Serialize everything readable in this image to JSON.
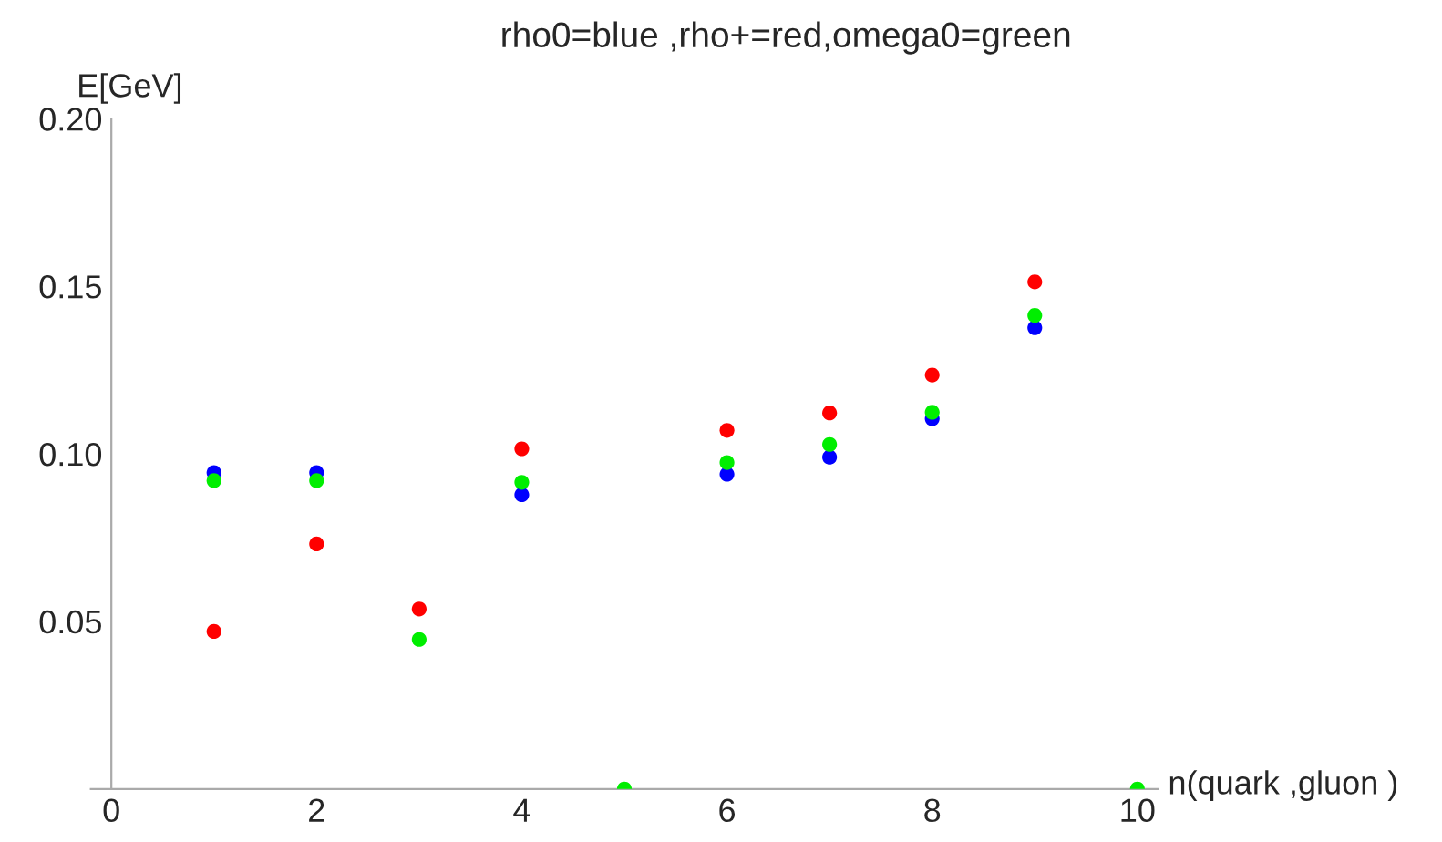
{
  "chart_data": {
    "type": "scatter",
    "title": "rho0=blue ,rho+=red,omega0=green",
    "xlabel": "n(quark ,gluon )",
    "ylabel": "E[GeV]",
    "x": [
      1,
      2,
      3,
      4,
      5,
      6,
      7,
      8,
      9,
      10
    ],
    "series": [
      {
        "color": "#0000ff",
        "values": [
          0.0944,
          0.0944,
          null,
          0.0878,
          null,
          0.0939,
          0.099,
          0.1105,
          0.1376,
          null
        ]
      },
      {
        "color": "#ff0000",
        "values": [
          0.047,
          0.0731,
          0.0537,
          0.1015,
          null,
          0.107,
          0.1122,
          0.1235,
          0.1513,
          null
        ]
      },
      {
        "color": "#00ee00",
        "values": [
          0.092,
          0.092,
          0.0446,
          0.0915,
          0,
          0.0974,
          0.1028,
          0.1124,
          0.1413,
          0
        ]
      }
    ],
    "xlim": [
      -0.2,
      10.2
    ],
    "ylim": [
      0,
      0.2
    ],
    "xticks": [
      0,
      2,
      4,
      6,
      8,
      10
    ],
    "yticks": [
      {
        "value": 0.05,
        "label": "0.05"
      },
      {
        "value": 0.1,
        "label": "0.10"
      },
      {
        "value": 0.15,
        "label": "0.15"
      },
      {
        "value": 0.2,
        "label": "0.20"
      }
    ],
    "grid": false,
    "legend": false,
    "marker": "circle"
  }
}
